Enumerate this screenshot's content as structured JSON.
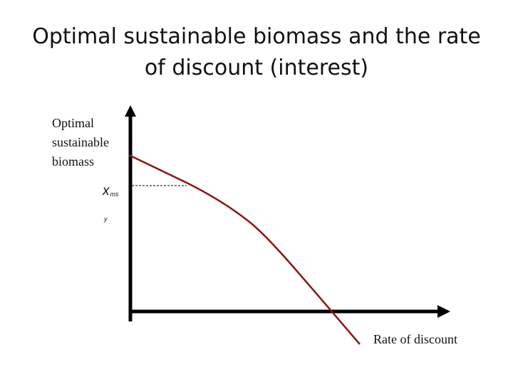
{
  "title": "Optimal sustainable biomass and the rate of discount (interest)",
  "diagram": {
    "y_axis_label": "Optimal\nsustainable\nbiomass",
    "x_axis_label": "Rate of discount",
    "marker": {
      "symbol": "x",
      "subscript": "ms",
      "subscript_wrap": "y"
    },
    "colors": {
      "curve": "#8b1414",
      "axes": "#000000",
      "guide": "#000000"
    }
  }
}
